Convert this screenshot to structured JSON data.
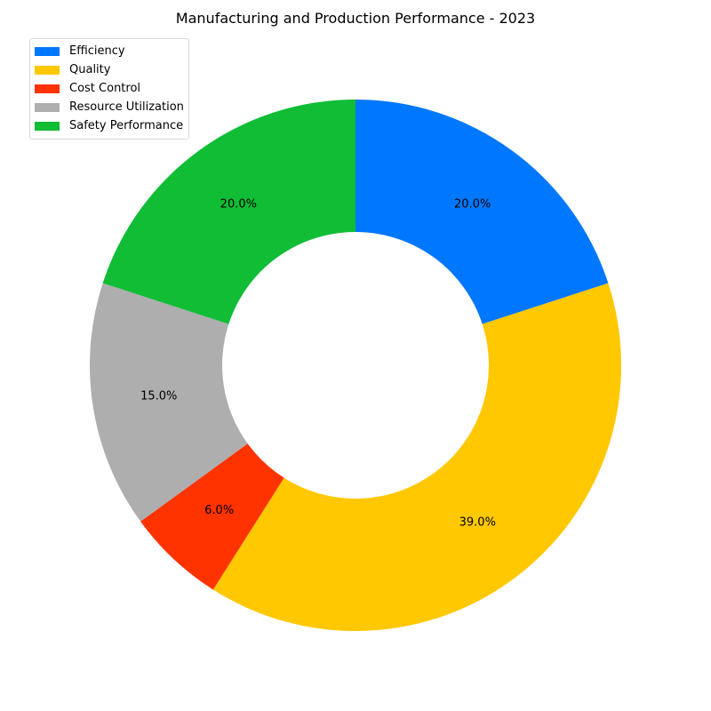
{
  "chart_data": {
    "type": "pie",
    "subtype": "donut",
    "title": "Manufacturing and Production Performance - 2023",
    "legend_position": "top-left",
    "start_angle_deg": 90,
    "direction": "clockwise",
    "slices": [
      {
        "label": "Efficiency",
        "value": 20.0,
        "pct_label": "20.0%",
        "color": "#0077ff"
      },
      {
        "label": "Quality",
        "value": 39.0,
        "pct_label": "39.0%",
        "color": "#ffc800"
      },
      {
        "label": "Cost Control",
        "value": 6.0,
        "pct_label": "6.0%",
        "color": "#ff3300"
      },
      {
        "label": "Resource Utilization",
        "value": 15.0,
        "pct_label": "15.0%",
        "color": "#aeaeae"
      },
      {
        "label": "Safety Performance",
        "value": 20.0,
        "pct_label": "20.0%",
        "color": "#10bd35"
      }
    ]
  }
}
